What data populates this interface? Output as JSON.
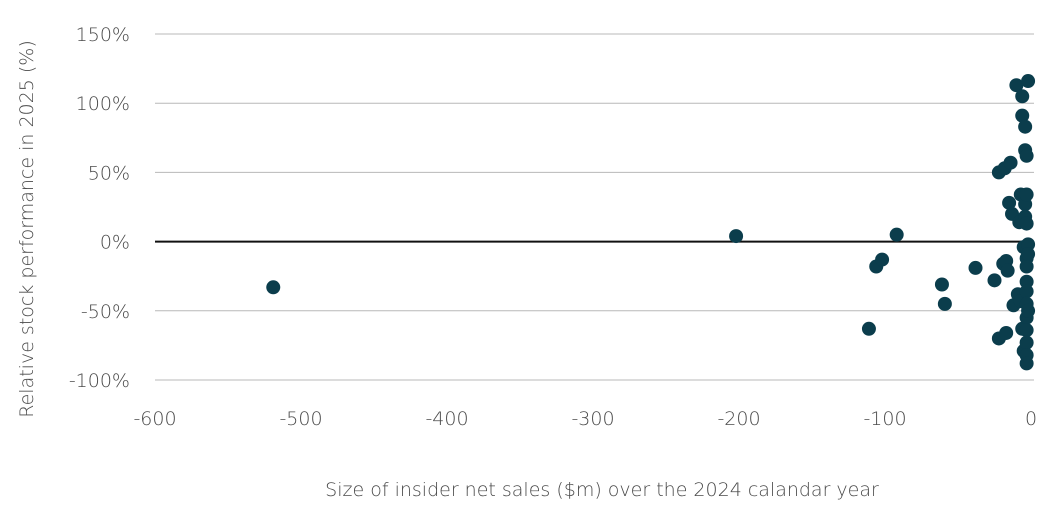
{
  "chart_data": {
    "type": "scatter",
    "xlabel": "Size of insider net sales ($m) over the 2024 calandar year",
    "ylabel": "Relative stock performance in 2025 (%)",
    "xlim": [
      -600,
      0
    ],
    "ylim": [
      -100,
      150
    ],
    "xticks": [
      -600,
      -500,
      -400,
      -300,
      -200,
      -100,
      0
    ],
    "yticks": [
      -100,
      -50,
      0,
      50,
      100,
      150
    ],
    "xtick_labels": [
      "-600",
      "-500",
      "-400",
      "-300",
      "-200",
      "-100",
      "0"
    ],
    "ytick_labels": [
      "-100%",
      "-50%",
      "0%",
      "50%",
      "100%",
      "150%"
    ],
    "grid": "horizontal",
    "marker_color": "#0b3d4c",
    "points": [
      {
        "x": -519,
        "y": -33
      },
      {
        "x": -202,
        "y": 4
      },
      {
        "x": -111,
        "y": -63
      },
      {
        "x": -106,
        "y": -18
      },
      {
        "x": -102,
        "y": -13
      },
      {
        "x": -92,
        "y": 5
      },
      {
        "x": -61,
        "y": -31
      },
      {
        "x": -59,
        "y": -45
      },
      {
        "x": -38,
        "y": -19
      },
      {
        "x": -25,
        "y": -28
      },
      {
        "x": -22,
        "y": 50
      },
      {
        "x": -22,
        "y": -70
      },
      {
        "x": -19,
        "y": -16
      },
      {
        "x": -18,
        "y": 53
      },
      {
        "x": -17,
        "y": -14
      },
      {
        "x": -17,
        "y": -66
      },
      {
        "x": -16,
        "y": -21
      },
      {
        "x": -15,
        "y": 28
      },
      {
        "x": -14,
        "y": 57
      },
      {
        "x": -13,
        "y": 20
      },
      {
        "x": -12,
        "y": -46
      },
      {
        "x": -10,
        "y": 113
      },
      {
        "x": -9,
        "y": -38
      },
      {
        "x": -8,
        "y": 14
      },
      {
        "x": -7,
        "y": 34
      },
      {
        "x": -7,
        "y": -43
      },
      {
        "x": -6,
        "y": 105
      },
      {
        "x": -6,
        "y": 91
      },
      {
        "x": -6,
        "y": -63
      },
      {
        "x": -5,
        "y": -4
      },
      {
        "x": -5,
        "y": -79
      },
      {
        "x": -4,
        "y": 83
      },
      {
        "x": -4,
        "y": 66
      },
      {
        "x": -4,
        "y": 27
      },
      {
        "x": -4,
        "y": 18
      },
      {
        "x": -3,
        "y": 62
      },
      {
        "x": -3,
        "y": 34
      },
      {
        "x": -3,
        "y": 13
      },
      {
        "x": -3,
        "y": -12
      },
      {
        "x": -3,
        "y": -18
      },
      {
        "x": -3,
        "y": -29
      },
      {
        "x": -3,
        "y": -36
      },
      {
        "x": -3,
        "y": -45
      },
      {
        "x": -3,
        "y": -55
      },
      {
        "x": -3,
        "y": -64
      },
      {
        "x": -3,
        "y": -73
      },
      {
        "x": -3,
        "y": -82
      },
      {
        "x": -3,
        "y": -88
      },
      {
        "x": -2,
        "y": 116
      },
      {
        "x": -2,
        "y": -2
      },
      {
        "x": -2,
        "y": -9
      },
      {
        "x": -2,
        "y": -50
      }
    ]
  }
}
